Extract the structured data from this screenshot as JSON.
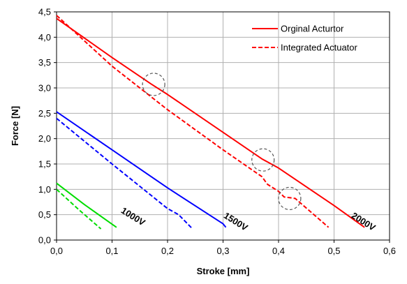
{
  "chart_data": {
    "type": "line",
    "title": "",
    "xlabel": "Stroke [mm]",
    "ylabel": "Force [N]",
    "xlim": [
      0,
      0.6
    ],
    "ylim": [
      0,
      4.5
    ],
    "x_ticks": [
      0,
      0.1,
      0.2,
      0.3,
      0.4,
      0.5,
      0.6
    ],
    "y_ticks": [
      0,
      0.5,
      1.0,
      1.5,
      2.0,
      2.5,
      3.0,
      3.5,
      4.0,
      4.5
    ],
    "x_tick_labels": [
      "0,0",
      "0,1",
      "0,2",
      "0,3",
      "0,4",
      "0,5",
      "0,6"
    ],
    "y_tick_labels": [
      "0,0",
      "0,5",
      "1,0",
      "1,5",
      "2,0",
      "2,5",
      "3,0",
      "3,5",
      "4,0",
      "4,5"
    ],
    "grid": true,
    "legend_position": "top-right",
    "legend": [
      {
        "label": "Orginal Acturtor",
        "style": "solid",
        "color": "#ff0000"
      },
      {
        "label": "Integrated Actuator",
        "style": "dashed",
        "color": "#ff0000"
      }
    ],
    "series": [
      {
        "voltage": "2000V",
        "type": "original",
        "color": "#ff0000",
        "dashed": false,
        "points": [
          [
            0.0,
            4.37
          ],
          [
            0.1,
            3.6
          ],
          [
            0.17,
            3.08
          ],
          [
            0.2,
            2.87
          ],
          [
            0.37,
            1.6
          ],
          [
            0.4,
            1.42
          ],
          [
            0.5,
            0.68
          ],
          [
            0.555,
            0.25
          ]
        ]
      },
      {
        "voltage": "2000V",
        "type": "integrated",
        "color": "#ff0000",
        "dashed": true,
        "points": [
          [
            0.0,
            4.43
          ],
          [
            0.1,
            3.43
          ],
          [
            0.2,
            2.57
          ],
          [
            0.3,
            1.78
          ],
          [
            0.37,
            1.25
          ],
          [
            0.38,
            1.1
          ],
          [
            0.4,
            0.96
          ],
          [
            0.41,
            0.85
          ],
          [
            0.43,
            0.82
          ],
          [
            0.49,
            0.25
          ]
        ]
      },
      {
        "voltage": "1500V",
        "type": "original",
        "color": "#0000ff",
        "dashed": false,
        "points": [
          [
            0.0,
            2.53
          ],
          [
            0.1,
            1.78
          ],
          [
            0.2,
            1.03
          ],
          [
            0.3,
            0.32
          ],
          [
            0.305,
            0.25
          ]
        ]
      },
      {
        "voltage": "1500V",
        "type": "integrated",
        "color": "#0000ff",
        "dashed": true,
        "points": [
          [
            0.0,
            2.4
          ],
          [
            0.1,
            1.5
          ],
          [
            0.2,
            0.62
          ],
          [
            0.22,
            0.5
          ],
          [
            0.245,
            0.22
          ]
        ]
      },
      {
        "voltage": "1000V",
        "type": "original",
        "color": "#00dd00",
        "dashed": false,
        "points": [
          [
            0.0,
            1.12
          ],
          [
            0.05,
            0.7
          ],
          [
            0.108,
            0.25
          ]
        ]
      },
      {
        "voltage": "1000V",
        "type": "integrated",
        "color": "#00dd00",
        "dashed": true,
        "points": [
          [
            0.0,
            1.0
          ],
          [
            0.04,
            0.6
          ],
          [
            0.08,
            0.22
          ]
        ]
      }
    ],
    "annotations": [
      {
        "text": "1000V",
        "x": 0.115,
        "y": 0.55
      },
      {
        "text": "1500V",
        "x": 0.3,
        "y": 0.45
      },
      {
        "text": "2000V",
        "x": 0.53,
        "y": 0.45
      }
    ],
    "highlight_circles": [
      {
        "x": 0.175,
        "y": 3.07
      },
      {
        "x": 0.372,
        "y": 1.58
      },
      {
        "x": 0.42,
        "y": 0.82
      }
    ]
  }
}
